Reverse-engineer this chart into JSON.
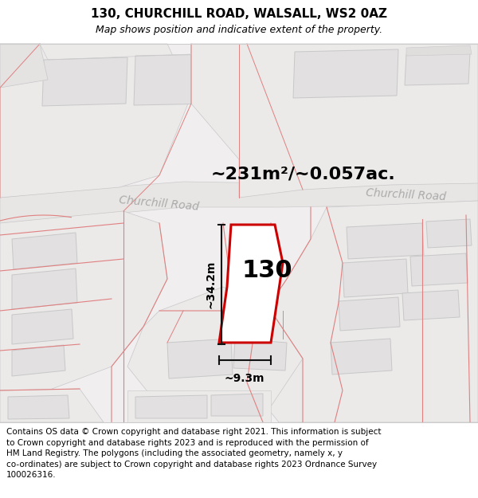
{
  "title": "130, CHURCHILL ROAD, WALSALL, WS2 0AZ",
  "subtitle": "Map shows position and indicative extent of the property.",
  "footer_line1": "Contains OS data © Crown copyright and database right 2021. This information is subject",
  "footer_line2": "to Crown copyright and database rights 2023 and is reproduced with the permission of",
  "footer_line3": "HM Land Registry. The polygons (including the associated geometry, namely x, y",
  "footer_line4": "co-ordinates) are subject to Crown copyright and database rights 2023 Ordnance Survey",
  "footer_line5": "100026316.",
  "area_label": "~231m²/~0.057ac.",
  "width_label": "~9.3m",
  "height_label": "~34.2m",
  "number_label": "130",
  "road_label_left": "Churchill Road",
  "road_label_right": "Churchill Road",
  "title_fontsize": 11,
  "subtitle_fontsize": 9,
  "footer_fontsize": 7.5,
  "area_fontsize": 16,
  "number_fontsize": 22,
  "road_fontsize": 10,
  "dim_fontsize": 10,
  "map_bg": "#f0eeee",
  "road_bg": "#e8e6e6",
  "neighbor_fill": "#e2e0e0",
  "neighbor_edge": "#c8c8c8",
  "plot_color": "#cc0000",
  "boundary_color": "#e08080",
  "dim_color": "#111111",
  "road_text_color": "#aaaaaa",
  "white": "#ffffff"
}
